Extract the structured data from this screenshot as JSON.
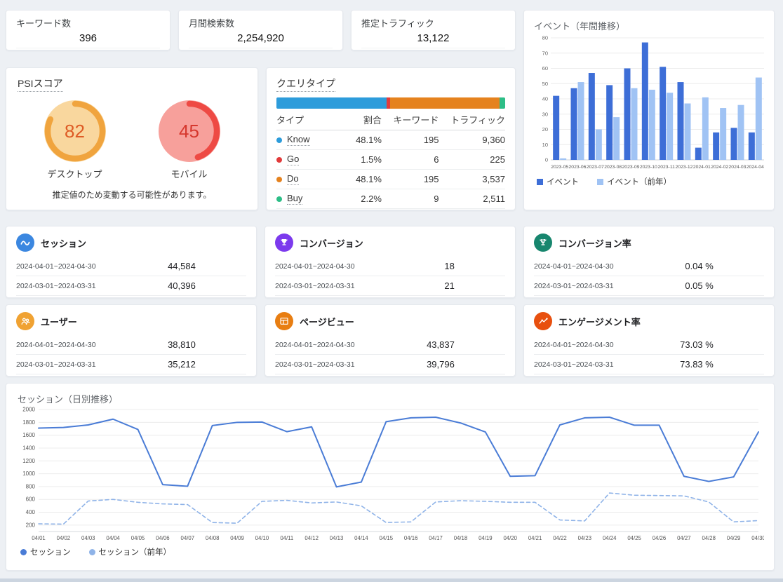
{
  "kpi_cards": [
    {
      "label": "キーワード数",
      "value": "396"
    },
    {
      "label": "月間検索数",
      "value": "2,254,920"
    },
    {
      "label": "推定トラフィック",
      "value": "13,122"
    }
  ],
  "psi": {
    "title": "PSIスコア",
    "note": "推定値のため変動する可能性があります。",
    "gauges": [
      {
        "label": "デスクトップ",
        "score": 82,
        "arc_color": "#F0A43E",
        "fill_color": "#F9D79E",
        "text_color": "#DE5B25"
      },
      {
        "label": "モバイル",
        "score": 45,
        "arc_color": "#EE4A44",
        "fill_color": "#F7A09B",
        "text_color": "#D6382E"
      }
    ]
  },
  "query_type": {
    "title": "クエリタイプ",
    "columns": [
      "タイプ",
      "割合",
      "キーワード",
      "トラフィック"
    ],
    "rows": [
      {
        "type": "Know",
        "color": "#2D9CDB",
        "share": "48.1%",
        "share_pct": 48.1,
        "keywords": "195",
        "traffic": "9,360"
      },
      {
        "type": "Go",
        "color": "#E23B3B",
        "share": "1.5%",
        "share_pct": 1.5,
        "keywords": "6",
        "traffic": "225"
      },
      {
        "type": "Do",
        "color": "#E5821E",
        "share": "48.1%",
        "share_pct": 48.1,
        "keywords": "195",
        "traffic": "3,537"
      },
      {
        "type": "Buy",
        "color": "#2DBE87",
        "share": "2.2%",
        "share_pct": 2.2,
        "keywords": "9",
        "traffic": "2,511"
      }
    ]
  },
  "metric_cards": [
    {
      "title": "セッション",
      "icon": "sessions-icon",
      "icon_color": "#3B87E0",
      "rows": [
        {
          "period": "2024-04-01~2024-04-30",
          "value": "44,584"
        },
        {
          "period": "2024-03-01~2024-03-31",
          "value": "40,396"
        }
      ]
    },
    {
      "title": "コンバージョン",
      "icon": "conversion-icon",
      "icon_color": "#7C3AED",
      "rows": [
        {
          "period": "2024-04-01~2024-04-30",
          "value": "18"
        },
        {
          "period": "2024-03-01~2024-03-31",
          "value": "21"
        }
      ]
    },
    {
      "title": "コンバージョン率",
      "icon": "conversion-rate-icon",
      "icon_color": "#17866E",
      "rows": [
        {
          "period": "2024-04-01~2024-04-30",
          "value": "0.04 %"
        },
        {
          "period": "2024-03-01~2024-03-31",
          "value": "0.05 %"
        }
      ]
    },
    {
      "title": "ユーザー",
      "icon": "users-icon",
      "icon_color": "#F0A232",
      "rows": [
        {
          "period": "2024-04-01~2024-04-30",
          "value": "38,810"
        },
        {
          "period": "2024-03-01~2024-03-31",
          "value": "35,212"
        }
      ]
    },
    {
      "title": "ページビュー",
      "icon": "pageview-icon",
      "icon_color": "#E87E12",
      "rows": [
        {
          "period": "2024-04-01~2024-04-30",
          "value": "43,837"
        },
        {
          "period": "2024-03-01~2024-03-31",
          "value": "39,796"
        }
      ]
    },
    {
      "title": "エンゲージメント率",
      "icon": "engagement-icon",
      "icon_color": "#E8500F",
      "rows": [
        {
          "period": "2024-04-01~2024-04-30",
          "value": "73.03 %"
        },
        {
          "period": "2024-03-01~2024-03-31",
          "value": "73.83 %"
        }
      ]
    }
  ],
  "chart_data": [
    {
      "type": "bar",
      "title": "イベント（年間推移）",
      "categories": [
        "2023-05",
        "2023-06",
        "2023-07",
        "2023-08",
        "2023-09",
        "2023-10",
        "2023-11",
        "2023-12",
        "2024-01",
        "2024-02",
        "2024-03",
        "2024-04"
      ],
      "series": [
        {
          "name": "イベント",
          "color": "#3D6ED7",
          "values": [
            42,
            47,
            57,
            49,
            60,
            77,
            61,
            51,
            8,
            18,
            21,
            18
          ]
        },
        {
          "name": "イベント（前年）",
          "color": "#A0C3F4",
          "values": [
            1,
            51,
            20,
            28,
            47,
            46,
            44,
            37,
            41,
            34,
            36,
            54
          ]
        }
      ],
      "ylim": [
        0,
        80
      ],
      "yticks": [
        0,
        10,
        20,
        30,
        40,
        50,
        60,
        70,
        80
      ],
      "xlabel": "",
      "ylabel": "",
      "grid": true,
      "legend_position": "bottom"
    },
    {
      "type": "line",
      "title": "セッション（日別推移）",
      "x": [
        "04/01",
        "04/02",
        "04/03",
        "04/04",
        "04/05",
        "04/06",
        "04/07",
        "04/08",
        "04/09",
        "04/10",
        "04/11",
        "04/12",
        "04/13",
        "04/14",
        "04/15",
        "04/16",
        "04/17",
        "04/18",
        "04/19",
        "04/20",
        "04/21",
        "04/22",
        "04/23",
        "04/24",
        "04/25",
        "04/26",
        "04/27",
        "04/28",
        "04/29",
        "04/30"
      ],
      "series": [
        {
          "name": "セッション",
          "style": "solid",
          "color": "#4A7CD6",
          "values": [
            1710,
            1720,
            1760,
            1850,
            1690,
            830,
            805,
            1750,
            1800,
            1805,
            1655,
            1730,
            795,
            870,
            1810,
            1870,
            1880,
            1790,
            1650,
            960,
            970,
            1760,
            1870,
            1880,
            1755,
            1755,
            960,
            880,
            950,
            1650
          ]
        },
        {
          "name": "セッション（前年）",
          "style": "dashed",
          "color": "#8FB3E8",
          "values": [
            220,
            215,
            575,
            600,
            555,
            530,
            520,
            240,
            230,
            570,
            585,
            545,
            560,
            500,
            240,
            250,
            560,
            580,
            570,
            555,
            555,
            280,
            265,
            700,
            665,
            660,
            655,
            560,
            250,
            270
          ]
        }
      ],
      "ylim": [
        100,
        2000
      ],
      "yticks": [
        200,
        400,
        600,
        800,
        1000,
        1200,
        1400,
        1600,
        1800,
        2000
      ],
      "xlabel": "",
      "ylabel": "",
      "grid": true,
      "legend_position": "bottom"
    }
  ]
}
